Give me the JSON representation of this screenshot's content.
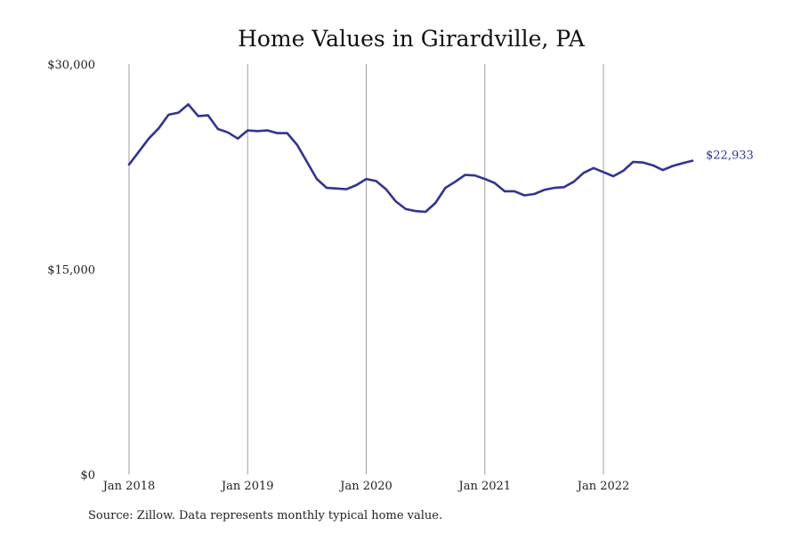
{
  "colors": {
    "series": "#32348f",
    "grid": "#9e9e9e",
    "text": "#222222"
  },
  "source_note": "Source: Zillow. Data represents monthly typical home value.",
  "chart_data": {
    "type": "line",
    "title": "Home Values in Girardville, PA",
    "xlabel": "",
    "ylabel": "",
    "grid": "vertical",
    "x_ticks": [
      {
        "label": "Jan 2018",
        "value": "2018-01"
      },
      {
        "label": "Jan 2019",
        "value": "2019-01"
      },
      {
        "label": "Jan 2020",
        "value": "2020-01"
      },
      {
        "label": "Jan 2021",
        "value": "2021-01"
      },
      {
        "label": "Jan 2022",
        "value": "2022-01"
      }
    ],
    "y_ticks": [
      {
        "label": "$30,000",
        "value": 30000
      },
      {
        "label": "$15,000",
        "value": 15000
      },
      {
        "label": "$0",
        "value": 0
      }
    ],
    "ylim": [
      0,
      30000
    ],
    "xlim": [
      "2018-01",
      "2022-10"
    ],
    "end_label": "$22,933",
    "series": [
      {
        "x": [
          "2018-01",
          "2018-02",
          "2018-03",
          "2018-04",
          "2018-05",
          "2018-06",
          "2018-07",
          "2018-08",
          "2018-09",
          "2018-10",
          "2018-11",
          "2018-12",
          "2019-01",
          "2019-02",
          "2019-03",
          "2019-04",
          "2019-05",
          "2019-06",
          "2019-07",
          "2019-08",
          "2019-09",
          "2019-10",
          "2019-11",
          "2019-12",
          "2020-01",
          "2020-02",
          "2020-03",
          "2020-04",
          "2020-05",
          "2020-06",
          "2020-07",
          "2020-08",
          "2020-09",
          "2020-10",
          "2020-11",
          "2020-12",
          "2021-01",
          "2021-02",
          "2021-03",
          "2021-04",
          "2021-05",
          "2021-06",
          "2021-07",
          "2021-08",
          "2021-09",
          "2021-10",
          "2021-11",
          "2021-12",
          "2022-01",
          "2022-02",
          "2022-03",
          "2022-04",
          "2022-05",
          "2022-06",
          "2022-07",
          "2022-08",
          "2022-09",
          "2022-10"
        ],
        "values": [
          22650,
          23600,
          24550,
          25300,
          26300,
          26450,
          27050,
          26200,
          26250,
          25250,
          25000,
          24550,
          25150,
          25100,
          25150,
          24950,
          24950,
          24100,
          22850,
          21600,
          20950,
          20900,
          20850,
          21150,
          21600,
          21450,
          20850,
          19950,
          19400,
          19250,
          19200,
          19850,
          20950,
          21400,
          21900,
          21850,
          21600,
          21300,
          20700,
          20700,
          20400,
          20500,
          20800,
          20950,
          21000,
          21400,
          22050,
          22400,
          22100,
          21800,
          22200,
          22850,
          22800,
          22600,
          22250,
          22550,
          22750,
          22933
        ]
      }
    ]
  }
}
